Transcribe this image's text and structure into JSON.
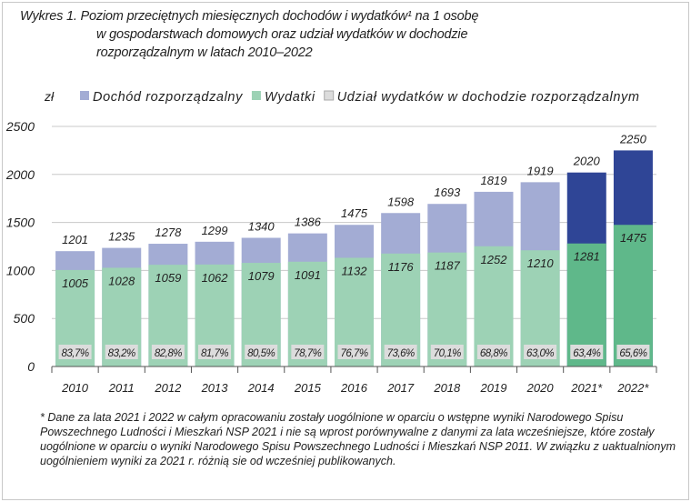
{
  "chart_data": {
    "type": "bar",
    "title": "Wykres 1. Poziom przeciętnych miesięcznych dochodów i wydatków¹ na 1 osobę w gospodarstwach domowych oraz udział wydatków w dochodzie rozporządzalnym w latach 2010–2022",
    "title_lines": [
      "Wykres 1. Poziom przeciętnych miesięcznych dochodów i wydatków¹ na 1 osobę",
      "w gospodarstwach domowych oraz udział wydatków w dochodzie",
      "rozporządzalnym w latach 2010–2022"
    ],
    "ylabel": "zł",
    "ylim": [
      0,
      2500
    ],
    "yticks": [
      0,
      500,
      1000,
      1500,
      2000,
      2500
    ],
    "grid": true,
    "legend_placement": "top",
    "categories": [
      "2010",
      "2011",
      "2012",
      "2013",
      "2014",
      "2015",
      "2016",
      "2017",
      "2018",
      "2019",
      "2020",
      "2021*",
      "2022*"
    ],
    "series": [
      {
        "name": "Dochód rozporządzalny",
        "values": [
          1201,
          1235,
          1278,
          1299,
          1340,
          1386,
          1475,
          1598,
          1693,
          1819,
          1919,
          2020,
          2250
        ],
        "color": "#a3acd4",
        "highlight_color": "#2f4596"
      },
      {
        "name": "Wydatki",
        "values": [
          1005,
          1028,
          1059,
          1062,
          1079,
          1091,
          1132,
          1176,
          1187,
          1252,
          1210,
          1281,
          1475
        ],
        "color": "#9dd2b5",
        "highlight_color": "#5fb88a"
      },
      {
        "name": "Udział wydatków w dochodzie rozporządzalnym",
        "values": [
          "83,7%",
          "83,2%",
          "82,8%",
          "81,7%",
          "80,5%",
          "78,7%",
          "76,7%",
          "73,6%",
          "70,1%",
          "68,8%",
          "63,0%",
          "63,4%",
          "65,6%"
        ],
        "color": "#dcdcdc"
      }
    ],
    "highlighted_categories": [
      "2021*",
      "2022*"
    ]
  },
  "footnote": "* Dane za lata 2021 i 2022 w całym opracowaniu zostały uogólnione w oparciu o wstępne wyniki Narodowego Spisu Powszechnego Ludności i Mieszkań NSP 2021 i nie są wprost porównywalne z danymi za lata wcześniejsze, które zostały uogólnione w oparciu o wyniki Narodowego Spisu Powszechnego Ludności i Mieszkań NSP 2011. W związku z uaktualnionym uogólnieniem wyniki za 2021 r. różnią sie od wcześniej publikowanych."
}
